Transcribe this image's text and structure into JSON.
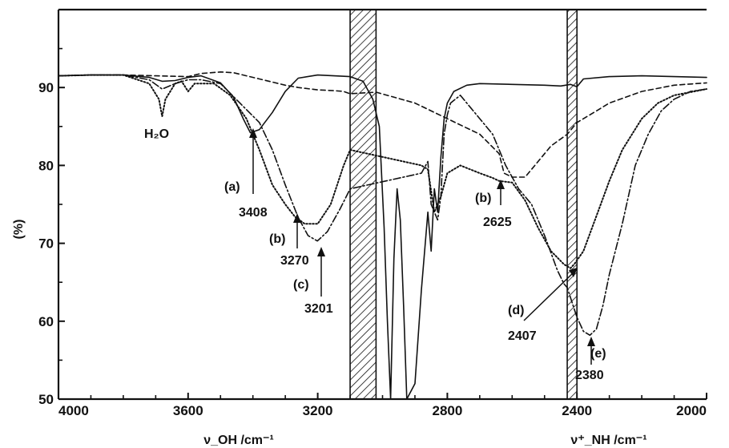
{
  "chart_data": {
    "type": "line",
    "title": "",
    "xlabel_left": "ν_OH /cm⁻¹",
    "xlabel_right": "ν⁺_NH /cm⁻¹",
    "ylabel": "(%)",
    "xlim": [
      4000,
      2000
    ],
    "ylim": [
      50,
      100
    ],
    "x_ticks": [
      4000,
      3600,
      3200,
      2800,
      2400,
      2000
    ],
    "y_ticks": [
      50,
      60,
      70,
      80,
      90
    ],
    "grid": false,
    "hatched_regions": [
      [
        3100,
        3020
      ],
      [
        2430,
        2400
      ]
    ],
    "series": [
      {
        "style": "solid",
        "points": [
          [
            4000,
            91.5
          ],
          [
            3900,
            91.6
          ],
          [
            3800,
            91.6
          ],
          [
            3720,
            91.3
          ],
          [
            3680,
            90.8
          ],
          [
            3640,
            90.9
          ],
          [
            3600,
            91.3
          ],
          [
            3560,
            91.5
          ],
          [
            3500,
            90.6
          ],
          [
            3460,
            88.8
          ],
          [
            3430,
            86
          ],
          [
            3408,
            84.2
          ],
          [
            3380,
            84.6
          ],
          [
            3340,
            86.8
          ],
          [
            3300,
            89.5
          ],
          [
            3260,
            91.2
          ],
          [
            3200,
            91.6
          ],
          [
            3100,
            91.4
          ],
          [
            3060,
            90.8
          ],
          [
            3030,
            88.5
          ],
          [
            3010,
            85
          ],
          [
            2995,
            72
          ],
          [
            2985,
            60
          ],
          [
            2975,
            50
          ],
          [
            2965,
            68
          ],
          [
            2955,
            77
          ],
          [
            2945,
            73
          ],
          [
            2935,
            62
          ],
          [
            2925,
            50
          ],
          [
            2900,
            52
          ],
          [
            2880,
            64
          ],
          [
            2860,
            74
          ],
          [
            2850,
            69
          ],
          [
            2840,
            77
          ],
          [
            2830,
            74
          ],
          [
            2820,
            81
          ],
          [
            2810,
            86
          ],
          [
            2800,
            88
          ],
          [
            2780,
            89.5
          ],
          [
            2740,
            90.3
          ],
          [
            2700,
            90.5
          ],
          [
            2600,
            90.4
          ],
          [
            2500,
            90.3
          ],
          [
            2450,
            90.2
          ],
          [
            2420,
            90.4
          ],
          [
            2400,
            90.1
          ],
          [
            2380,
            91.1
          ],
          [
            2300,
            91.4
          ],
          [
            2200,
            91.5
          ],
          [
            2000,
            91.3
          ]
        ]
      },
      {
        "style": "dashed",
        "points": [
          [
            4000,
            91.5
          ],
          [
            3900,
            91.6
          ],
          [
            3800,
            91.6
          ],
          [
            3700,
            91.5
          ],
          [
            3600,
            91.4
          ],
          [
            3560,
            91.8
          ],
          [
            3500,
            92
          ],
          [
            3460,
            91.9
          ],
          [
            3420,
            91.5
          ],
          [
            3380,
            91.1
          ],
          [
            3340,
            90.7
          ],
          [
            3300,
            90.3
          ],
          [
            3260,
            90
          ],
          [
            3200,
            89.7
          ],
          [
            3150,
            89.6
          ],
          [
            3120,
            89.5
          ],
          [
            3100,
            89.2
          ],
          [
            3020,
            89.4
          ],
          [
            2900,
            88
          ],
          [
            2800,
            86
          ],
          [
            2700,
            84
          ],
          [
            2640,
            81.5
          ],
          [
            2625,
            79
          ],
          [
            2600,
            78.5
          ],
          [
            2560,
            78.5
          ],
          [
            2520,
            80.5
          ],
          [
            2480,
            82.5
          ],
          [
            2430,
            84
          ],
          [
            2400,
            85.5
          ],
          [
            2340,
            87
          ],
          [
            2300,
            88
          ],
          [
            2200,
            89.5
          ],
          [
            2100,
            90.3
          ],
          [
            2000,
            90.6
          ]
        ]
      },
      {
        "style": "dotted",
        "points": [
          [
            4000,
            91.5
          ],
          [
            3900,
            91.6
          ],
          [
            3800,
            91.6
          ],
          [
            3720,
            90.5
          ],
          [
            3690,
            88.5
          ],
          [
            3680,
            86.3
          ],
          [
            3670,
            88.5
          ],
          [
            3640,
            90.5
          ],
          [
            3620,
            90.8
          ],
          [
            3600,
            89.5
          ],
          [
            3580,
            90.5
          ],
          [
            3520,
            90.5
          ],
          [
            3470,
            89
          ],
          [
            3420,
            86
          ],
          [
            3380,
            82
          ],
          [
            3340,
            77.5
          ],
          [
            3300,
            75
          ],
          [
            3270,
            73.4
          ],
          [
            3240,
            72.5
          ],
          [
            3200,
            72.5
          ],
          [
            3160,
            75
          ],
          [
            3120,
            80
          ],
          [
            3100,
            82
          ],
          [
            2880,
            80
          ],
          [
            2860,
            79.5
          ],
          [
            2840,
            74
          ],
          [
            2820,
            76
          ],
          [
            2800,
            79
          ],
          [
            2760,
            80
          ],
          [
            2700,
            79
          ],
          [
            2660,
            78.4
          ],
          [
            2640,
            78
          ],
          [
            2600,
            77.8
          ],
          [
            2560,
            75.5
          ],
          [
            2520,
            72
          ],
          [
            2480,
            69
          ],
          [
            2440,
            67.3
          ],
          [
            2420,
            66.8
          ],
          [
            2407,
            67.4
          ],
          [
            2380,
            69
          ],
          [
            2340,
            73.5
          ],
          [
            2300,
            78
          ],
          [
            2260,
            82
          ],
          [
            2200,
            86
          ],
          [
            2150,
            88
          ],
          [
            2100,
            89
          ],
          [
            2000,
            89.8
          ]
        ]
      },
      {
        "style": "dash-dot",
        "points": [
          [
            4000,
            91.5
          ],
          [
            3900,
            91.6
          ],
          [
            3800,
            91.6
          ],
          [
            3720,
            91
          ],
          [
            3680,
            89.8
          ],
          [
            3640,
            90.5
          ],
          [
            3600,
            91
          ],
          [
            3560,
            91
          ],
          [
            3500,
            90.5
          ],
          [
            3440,
            88
          ],
          [
            3380,
            85.5
          ],
          [
            3340,
            82
          ],
          [
            3300,
            77.5
          ],
          [
            3260,
            73.3
          ],
          [
            3230,
            71
          ],
          [
            3201,
            70.3
          ],
          [
            3170,
            71.5
          ],
          [
            3130,
            74.5
          ],
          [
            3100,
            77
          ],
          [
            2880,
            79
          ],
          [
            2860,
            80.5
          ],
          [
            2850,
            75
          ],
          [
            2830,
            73
          ],
          [
            2820,
            76
          ],
          [
            2810,
            84
          ],
          [
            2800,
            86.5
          ],
          [
            2790,
            88
          ],
          [
            2760,
            89
          ],
          [
            2700,
            86
          ],
          [
            2660,
            84
          ],
          [
            2620,
            80
          ],
          [
            2580,
            77
          ],
          [
            2540,
            75
          ],
          [
            2500,
            71
          ],
          [
            2460,
            66.5
          ],
          [
            2440,
            64.8
          ],
          [
            2430,
            64.3
          ],
          [
            2400,
            60.5
          ],
          [
            2380,
            58.7
          ],
          [
            2360,
            58.2
          ],
          [
            2340,
            59
          ],
          [
            2320,
            62
          ],
          [
            2300,
            66
          ],
          [
            2260,
            72.5
          ],
          [
            2220,
            80
          ],
          [
            2180,
            84
          ],
          [
            2140,
            87
          ],
          [
            2100,
            88.5
          ],
          [
            2050,
            89.5
          ],
          [
            2000,
            89.8
          ]
        ]
      }
    ],
    "annotations": {
      "h2o": "H₂O",
      "a_label": "(a)",
      "a_value": "3408",
      "b_label": "(b)",
      "b_value": "3270",
      "c_label": "(c)",
      "c_value": "3201",
      "b2_label": "(b)",
      "b2_value": "2625",
      "d_label": "(d)",
      "d_value": "2407",
      "e_label": "(e)",
      "e_value": "2380"
    }
  }
}
